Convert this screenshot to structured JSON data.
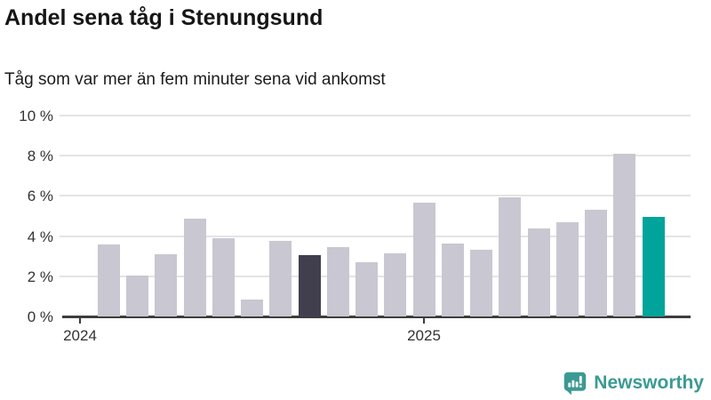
{
  "header": {
    "title": "Andel sena tåg i Stenungsund",
    "subtitle": "Tåg som var mer än fem minuter sena vid ankomst"
  },
  "chart_data": {
    "type": "bar",
    "title": "Andel sena tåg i Stenungsund",
    "subtitle": "Tåg som var mer än fem minuter sena vid ankomst",
    "unit": "%",
    "values": [
      3.6,
      2.05,
      3.1,
      4.85,
      3.9,
      0.85,
      3.75,
      3.05,
      3.45,
      2.7,
      3.15,
      5.65,
      3.65,
      3.3,
      5.95,
      4.4,
      4.7,
      5.3,
      8.1,
      4.95
    ],
    "highlight_dark_index": 7,
    "highlight_accent_index": 19,
    "ylim": [
      0,
      10
    ],
    "y_tick_values": [
      0,
      2,
      4,
      6,
      8,
      10
    ],
    "y_tick_labels": [
      "0 %",
      "2 %",
      "4 %",
      "6 %",
      "8 %",
      "10 %"
    ],
    "x_tick_labels": [
      "2024",
      "2025"
    ],
    "x_tick_month_offsets": [
      0,
      12
    ],
    "grid": true,
    "legend": false,
    "colors": {
      "bar_default": "#c9c7d1",
      "bar_dark": "#413f4e",
      "bar_accent": "#00a49b",
      "gridline": "#e4e4e4",
      "axis": "#3d3d3d",
      "tick_label": "#333333"
    }
  },
  "branding": {
    "logo_text": "Newsworthy",
    "logo_color": "#3b9a93",
    "logo_icon": "speech-bubble-bar-chart-exclamation"
  }
}
